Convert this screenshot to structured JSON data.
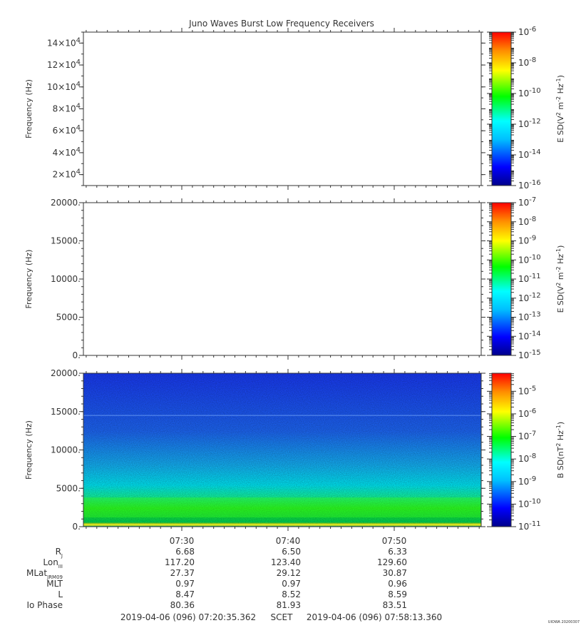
{
  "title": "Juno Waves Burst Low Frequency Receivers",
  "stamp": "UIOWA 20200307",
  "time_ticks": [
    "07:30",
    "07:40",
    "07:50"
  ],
  "ephemeris": {
    "row_labels": [
      {
        "main": "R",
        "sub": "J"
      },
      {
        "main": "Lon",
        "sub": "III"
      },
      {
        "main": "MLat",
        "sub": "JRM09"
      },
      {
        "main": "MLT",
        "sub": ""
      },
      {
        "main": "L",
        "sub": ""
      },
      {
        "main": "Io Phase",
        "sub": ""
      }
    ],
    "rows": [
      [
        "6.68",
        "6.50",
        "6.33"
      ],
      [
        "117.20",
        "123.40",
        "129.60"
      ],
      [
        "27.37",
        "29.12",
        "30.87"
      ],
      [
        "0.97",
        "0.97",
        "0.96"
      ],
      [
        "8.47",
        "8.52",
        "8.59"
      ],
      [
        "80.36",
        "81.93",
        "83.51"
      ]
    ]
  },
  "time_range": {
    "start": "2019-04-06 (096) 07:20:35.362",
    "label": "SCET",
    "end": "2019-04-06 (096) 07:58:13.360"
  },
  "colors": {
    "axis": "#333333",
    "spectrum": [
      "#00008b",
      "#0000ff",
      "#00bfff",
      "#00ffff",
      "#00ff00",
      "#ffff00",
      "#ff8c00",
      "#ff0000"
    ]
  },
  "chart_data": [
    {
      "type": "heatmap",
      "title": "Juno Waves Burst Low Frequency Receivers",
      "ylabel": "Frequency (Hz)",
      "yticks": [
        {
          "v": 20000,
          "base": "2",
          "exp": "4"
        },
        {
          "v": 40000,
          "base": "4",
          "exp": "4"
        },
        {
          "v": 60000,
          "base": "6",
          "exp": "4"
        },
        {
          "v": 80000,
          "base": "8",
          "exp": "4"
        },
        {
          "v": 100000,
          "base": "10",
          "exp": "4"
        },
        {
          "v": 120000,
          "base": "12",
          "exp": "4"
        },
        {
          "v": 140000,
          "base": "14",
          "exp": "4"
        }
      ],
      "ylim": [
        10000,
        150000
      ],
      "colorbar": {
        "label": "E SD (V² m⁻² Hz⁻¹)",
        "label_parts": [
          "E SD(V",
          "2",
          " m",
          "-2",
          " Hz",
          "-1",
          ")"
        ],
        "log_range": [
          -16,
          -6
        ],
        "ticks": [
          -6,
          -8,
          -10,
          -12,
          -14,
          -16
        ]
      },
      "data": "empty"
    },
    {
      "type": "heatmap",
      "ylabel": "Frequency (Hz)",
      "yticks": [
        {
          "v": 0,
          "label": "0."
        },
        {
          "v": 5000,
          "label": "5000."
        },
        {
          "v": 10000,
          "label": "10000."
        },
        {
          "v": 15000,
          "label": "15000."
        },
        {
          "v": 20000,
          "label": "20000."
        }
      ],
      "ylim": [
        0,
        20000
      ],
      "colorbar": {
        "label": "E SD (V² m⁻² Hz⁻¹)",
        "label_parts": [
          "E SD(V",
          "2",
          " m",
          "-2",
          " Hz",
          "-1",
          ")"
        ],
        "log_range": [
          -15,
          -7
        ],
        "ticks": [
          -7,
          -8,
          -9,
          -10,
          -11,
          -12,
          -13,
          -14,
          -15
        ]
      },
      "data": "empty"
    },
    {
      "type": "heatmap",
      "ylabel": "Frequency (Hz)",
      "yticks": [
        {
          "v": 0,
          "label": "0."
        },
        {
          "v": 5000,
          "label": "5000."
        },
        {
          "v": 10000,
          "label": "10000."
        },
        {
          "v": 15000,
          "label": "15000."
        },
        {
          "v": 20000,
          "label": "20000."
        }
      ],
      "ylim": [
        0,
        20000
      ],
      "colorbar": {
        "label": "B SD (nT² Hz⁻¹)",
        "label_parts": [
          "B SD(nT",
          "2",
          " Hz",
          "-1",
          ")"
        ],
        "log_range": [
          -11,
          -4.2
        ],
        "ticks": [
          -5,
          -6,
          -7,
          -8,
          -9,
          -10,
          -11
        ]
      },
      "data": "B-field spectral density: bright green band below ~4000 Hz, cyan up to ~8000 Hz, blue above; faint line near 14500 Hz"
    }
  ]
}
